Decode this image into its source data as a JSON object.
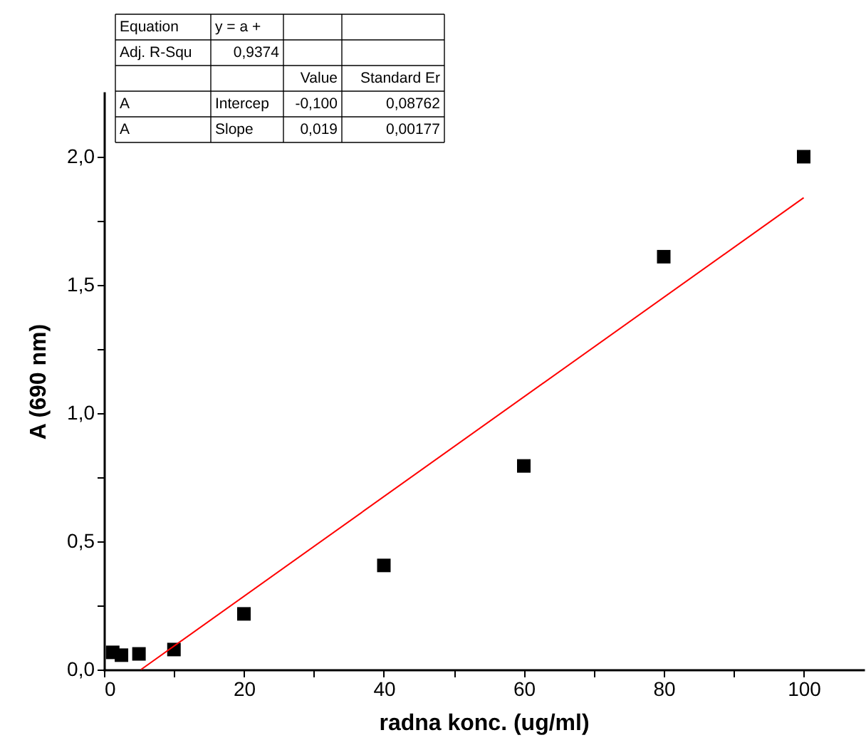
{
  "chart_data": {
    "type": "scatter",
    "xlabel": "radna konc. (ug/ml)",
    "ylabel": "A (690 nm)",
    "xlim": [
      0,
      108.5
    ],
    "ylim": [
      0,
      2.25
    ],
    "xticks": [
      0,
      {
        "value": 10,
        "label": null
      },
      20,
      {
        "value": 30,
        "label": null
      },
      40,
      {
        "value": 50,
        "label": null
      },
      60,
      {
        "value": 70,
        "label": null
      },
      80,
      {
        "value": 90,
        "label": null
      },
      100
    ],
    "yticks": [
      {
        "value": 0,
        "label": "0,0"
      },
      {
        "value": 0.25,
        "label": null
      },
      {
        "value": 0.5,
        "label": "0,5"
      },
      {
        "value": 0.75,
        "label": null
      },
      {
        "value": 1.0,
        "label": "1,0"
      },
      {
        "value": 1.25,
        "label": null
      },
      {
        "value": 1.5,
        "label": "1,5"
      },
      {
        "value": 1.75,
        "label": null
      },
      {
        "value": 2.0,
        "label": "2,0"
      }
    ],
    "grid": false,
    "marker": "square",
    "series": [
      {
        "color": "#000000",
        "x": [
          1.25,
          2.5,
          5,
          10,
          20,
          40,
          60,
          80,
          100
        ],
        "values": [
          0.067,
          0.056,
          0.061,
          0.078,
          0.217,
          0.406,
          0.794,
          1.61,
          2.0
        ]
      },
      {
        "type": "line",
        "marker": "none",
        "color": "#ff0000",
        "line_style": "solid",
        "x": [
          5.3,
          100
        ],
        "values": [
          0,
          1.84
        ]
      }
    ],
    "annotations": [
      "Equation",
      "y = a +",
      "Adj. R-Squ",
      "0,9374",
      "Value",
      "Standard Er",
      "A",
      "Intercep",
      "-0,100",
      "0,08762",
      "A",
      "Slope",
      "0,019",
      "0,00177"
    ]
  }
}
